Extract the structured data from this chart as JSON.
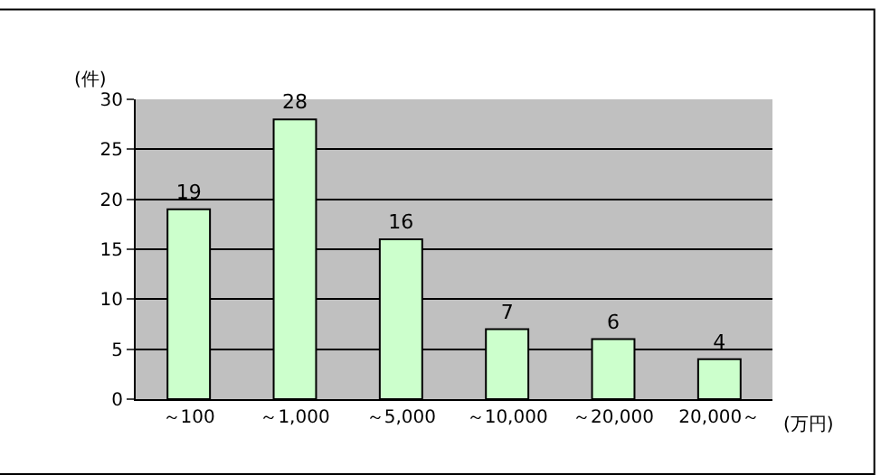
{
  "chart_data": {
    "type": "bar",
    "categories": [
      "～100",
      "～1,000",
      "～5,000",
      "～10,000",
      "～20,000",
      "20,000～"
    ],
    "values": [
      19,
      28,
      16,
      7,
      6,
      4
    ],
    "color": "#ccffcc",
    "ylabel": "(件)",
    "xlabel": "(万円)",
    "ylim": [
      0,
      30
    ],
    "yticks": [
      0,
      5,
      10,
      15,
      20,
      25,
      30
    ],
    "grid": "y",
    "data_labels": true
  }
}
